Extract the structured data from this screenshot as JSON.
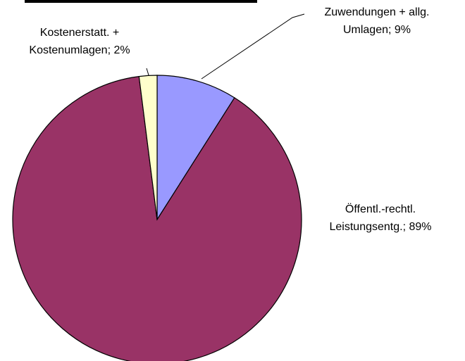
{
  "chart_data": {
    "type": "pie",
    "categories": [
      "Zuwendungen + allg. Umlagen",
      "Öffentl.-rechtl. Leistungsentg.",
      "Kostenerstatt. + Kostenumlagen"
    ],
    "values": [
      9,
      89,
      2
    ],
    "labels": [
      [
        "Zuwendungen + allg.",
        "Umlagen; 9%"
      ],
      [
        "Öffentl.-rechtl.",
        "Leistungsentg.; 89%"
      ],
      [
        "Kostenerstatt. +",
        "Kostenumlagen; 2%"
      ]
    ],
    "colors": [
      "#9999ff",
      "#993366",
      "#ffffcc"
    ]
  }
}
